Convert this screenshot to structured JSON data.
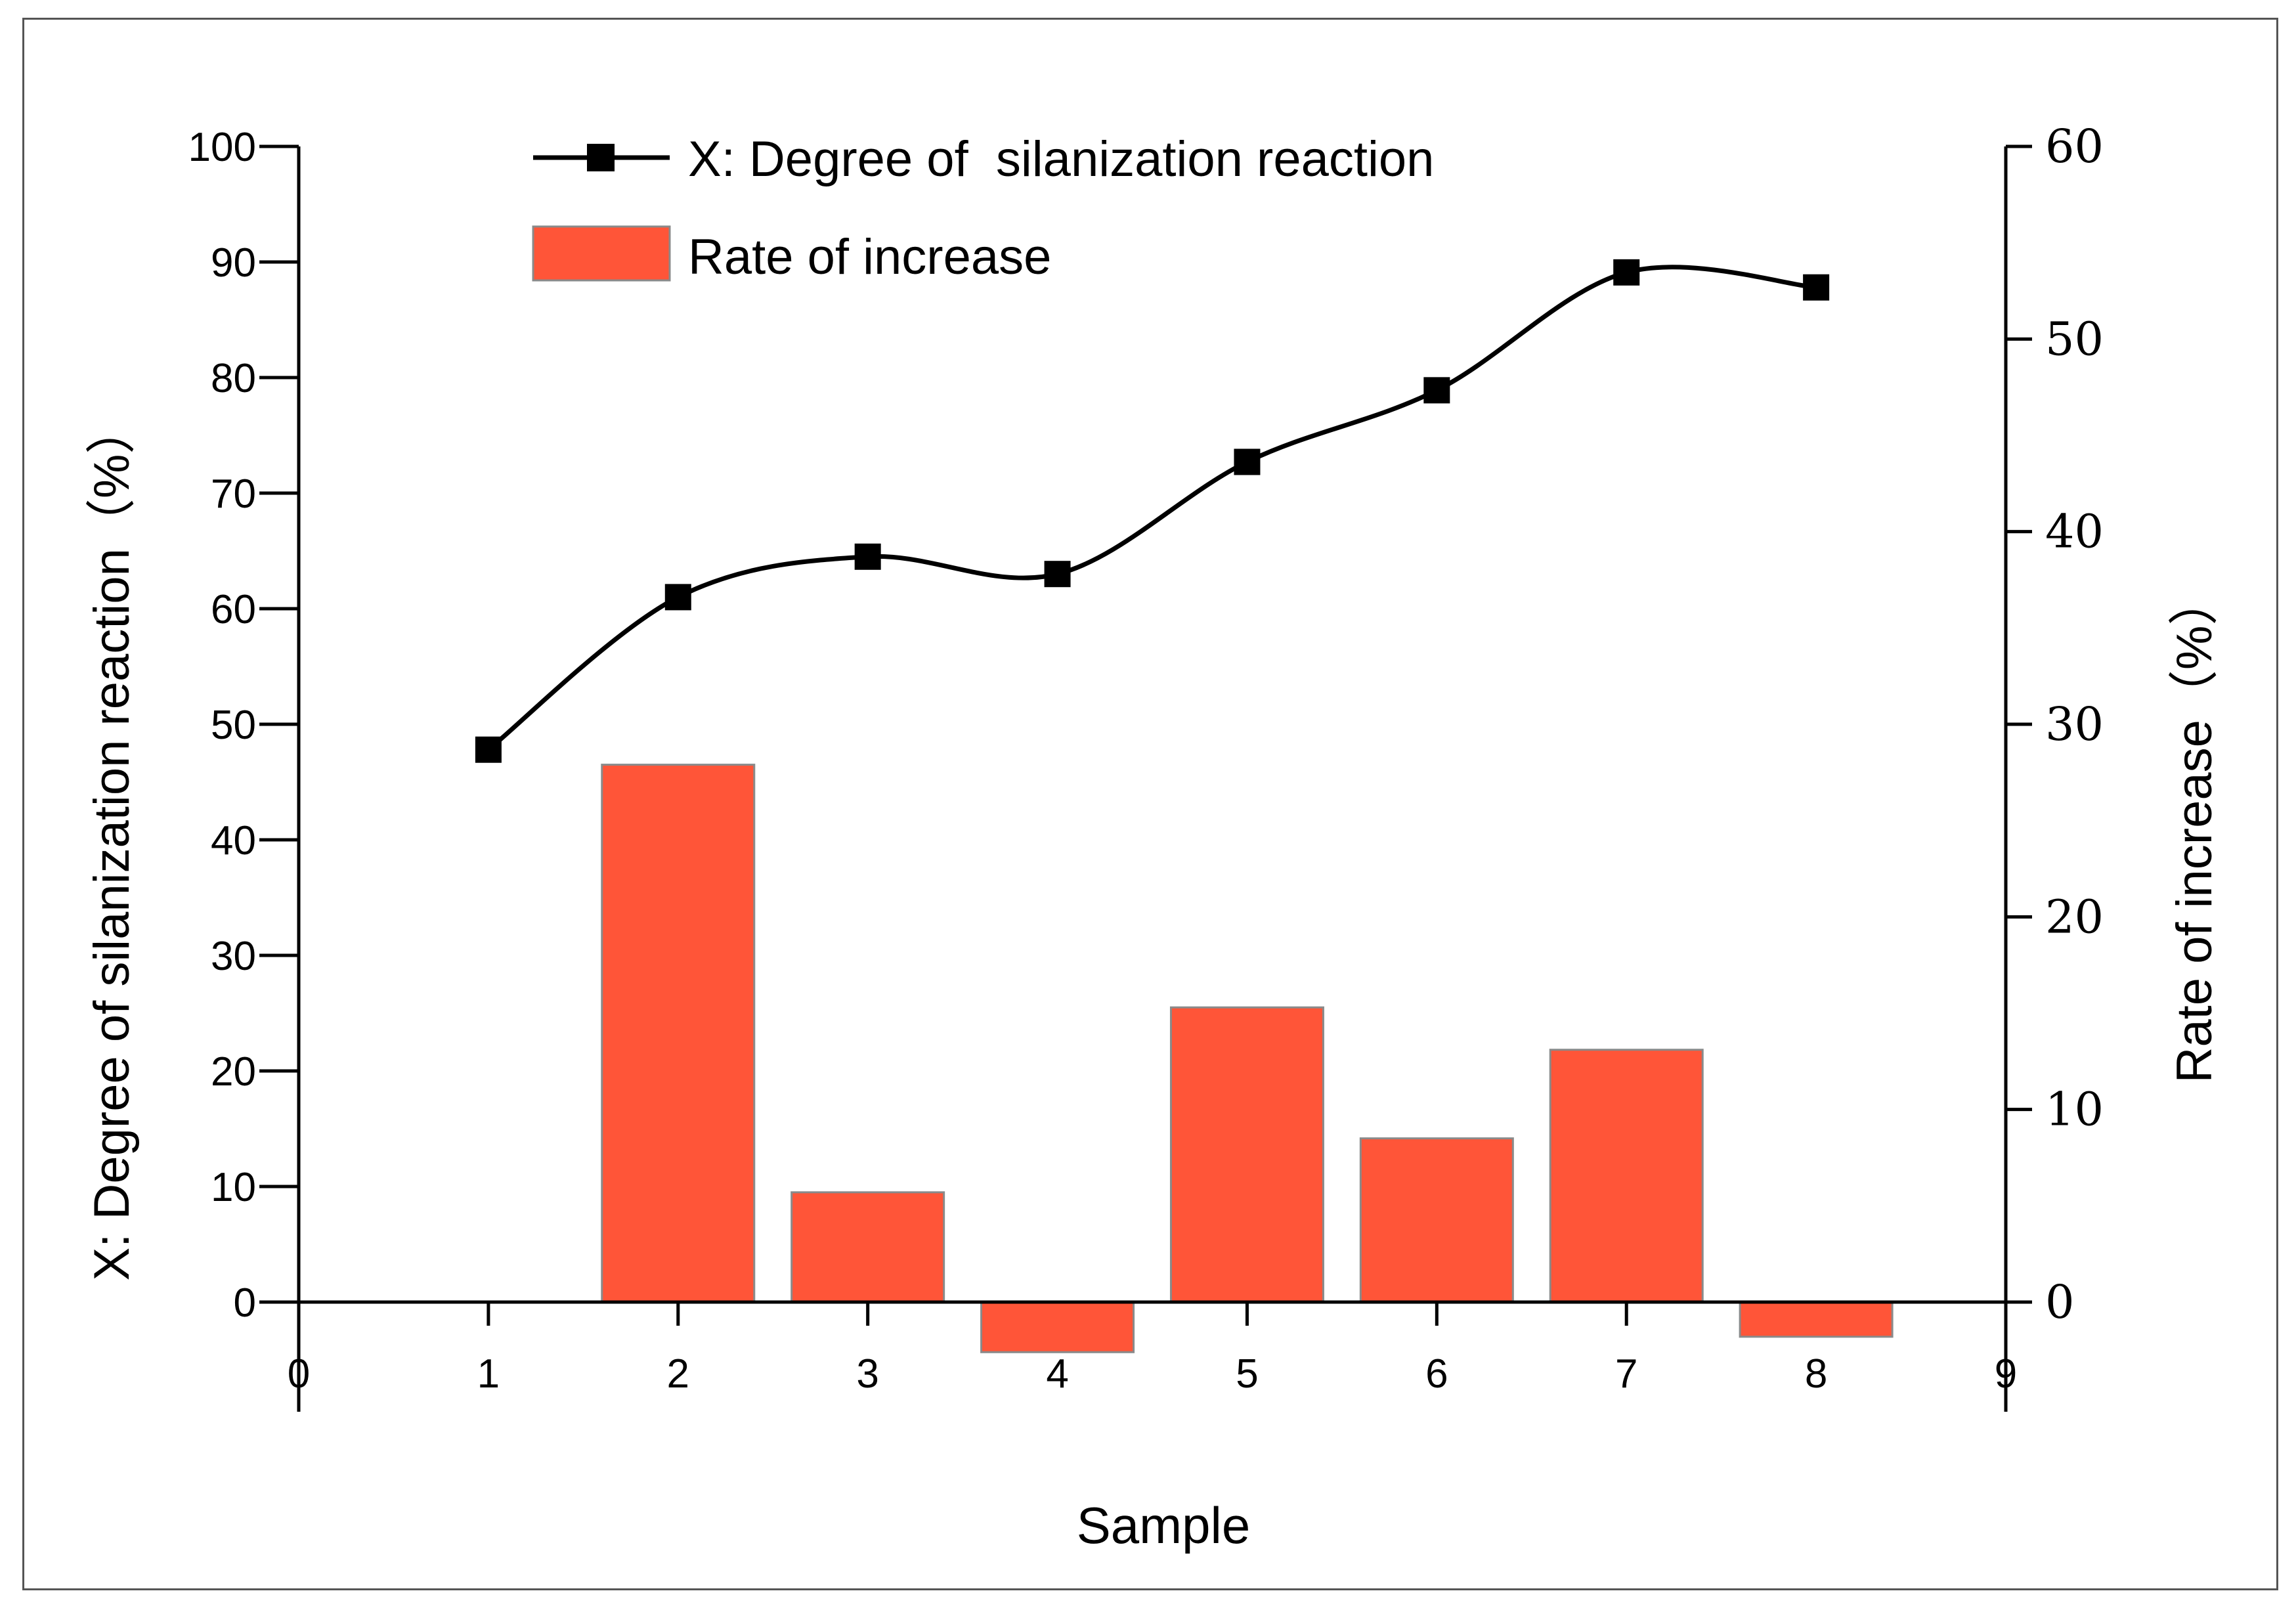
{
  "chart_data": {
    "type": "bar",
    "title": "",
    "xlabel": "Sample",
    "ylabel": "X: Degree of silanization reaction（%）",
    "y2label": "Rate of increase（%）",
    "xlim": [
      0,
      9
    ],
    "ylim": [
      0,
      100
    ],
    "y2lim": [
      0,
      60
    ],
    "x_ticks": [
      0,
      1,
      2,
      3,
      4,
      5,
      6,
      7,
      8,
      9
    ],
    "y_ticks": [
      0,
      10,
      20,
      30,
      40,
      50,
      60,
      70,
      80,
      90,
      100
    ],
    "y2_ticks": [
      0,
      10,
      20,
      30,
      40,
      50,
      60
    ],
    "legend_position": "top-center",
    "series": [
      {
        "name": "X: Degree of  silanization reaction",
        "kind": "line",
        "axis": "left",
        "color": "#000000",
        "marker": "square",
        "smooth": true,
        "x": [
          1,
          2,
          3,
          4,
          5,
          6,
          7,
          8
        ],
        "values": [
          47.8,
          61,
          64.5,
          63,
          72.7,
          78.9,
          89.1,
          87.8
        ]
      },
      {
        "name": "Rate of increase",
        "kind": "bar",
        "axis": "right",
        "color": "#ff5538",
        "x": [
          2,
          3,
          4,
          5,
          6,
          7,
          8
        ],
        "values": [
          27.9,
          5.7,
          -2.6,
          15.3,
          8.5,
          13.1,
          -1.8
        ]
      }
    ]
  }
}
